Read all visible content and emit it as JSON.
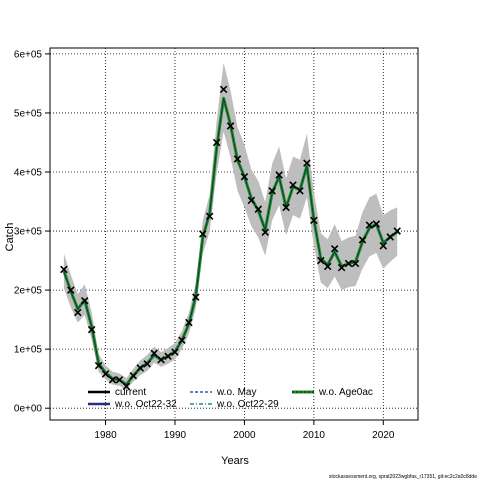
{
  "chart_data": {
    "type": "line",
    "xlabel": "Years",
    "ylabel": "Catch",
    "xlim": [
      1972,
      2025
    ],
    "ylim": [
      -20000,
      610000
    ],
    "x_ticks": [
      1980,
      1990,
      2000,
      2010,
      2020
    ],
    "y_ticks": [
      {
        "value": 0,
        "label": "0e+00"
      },
      {
        "value": 100000,
        "label": "1e+05"
      },
      {
        "value": 200000,
        "label": "2e+05"
      },
      {
        "value": 300000,
        "label": "3e+05"
      },
      {
        "value": 400000,
        "label": "4e+05"
      },
      {
        "value": 500000,
        "label": "5e+05"
      },
      {
        "value": 600000,
        "label": "6e+05"
      }
    ],
    "grid": true,
    "colors": {
      "band": "#bebebe",
      "current": "#000000",
      "wo_may": "#1f5fa8",
      "wo_age0ac": "#228b22",
      "wo_oct22_32": "#2b2b80",
      "wo_oct22_29": "#1a8a8a",
      "observed": "#000000"
    },
    "legend": [
      {
        "label": "current",
        "style": "current"
      },
      {
        "label": "w.o. May",
        "style": "wo_may"
      },
      {
        "label": "w.o. Age0ac",
        "style": "wo_age0ac"
      },
      {
        "label": "w.o. Oct22-32",
        "style": "wo_oct22_32"
      },
      {
        "label": "w.o. Oct22-29",
        "style": "wo_oct22_29"
      }
    ],
    "credit": "stockassessment.org, sprat2023wgbfas_r17351, git:ec2c2a0c8dde",
    "x": [
      1974,
      1975,
      1976,
      1977,
      1978,
      1979,
      1980,
      1981,
      1982,
      1983,
      1984,
      1985,
      1986,
      1987,
      1988,
      1989,
      1990,
      1991,
      1992,
      1993,
      1994,
      1995,
      1996,
      1997,
      1998,
      1999,
      2000,
      2001,
      2002,
      2003,
      2004,
      2005,
      2006,
      2007,
      2008,
      2009,
      2010,
      2011,
      2012,
      2013,
      2014,
      2015,
      2016,
      2017,
      2018,
      2019,
      2020,
      2021,
      2022
    ],
    "observed": [
      235000,
      200000,
      162000,
      182000,
      133000,
      72000,
      58000,
      48000,
      48000,
      37000,
      55000,
      68000,
      75000,
      93000,
      82000,
      88000,
      95000,
      115000,
      145000,
      188000,
      295000,
      325000,
      450000,
      540000,
      478000,
      422000,
      392000,
      352000,
      337000,
      298000,
      368000,
      395000,
      340000,
      378000,
      368000,
      415000,
      318000,
      250000,
      240000,
      270000,
      238000,
      245000,
      245000,
      285000,
      310000,
      312000,
      275000,
      290000,
      300000
    ],
    "series": [
      {
        "name": "current",
        "values": [
          232000,
          198000,
          168000,
          183000,
          138000,
          76000,
          60000,
          50000,
          48000,
          40000,
          55000,
          68000,
          76000,
          90000,
          82000,
          88000,
          96000,
          115000,
          143000,
          190000,
          290000,
          330000,
          440000,
          525000,
          480000,
          420000,
          392000,
          355000,
          335000,
          302000,
          365000,
          392000,
          340000,
          375000,
          370000,
          410000,
          320000,
          253000,
          243000,
          265000,
          240000,
          245000,
          248000,
          282000,
          305000,
          312000,
          280000,
          290000,
          298000
        ]
      }
    ],
    "band_upper": [
      262000,
      226000,
      193000,
      210000,
      162000,
      92000,
      73000,
      62000,
      59000,
      51000,
      67000,
      81000,
      90000,
      104000,
      95000,
      102000,
      110000,
      131000,
      161000,
      212000,
      318000,
      362000,
      486000,
      585000,
      538000,
      476000,
      446000,
      404000,
      385000,
      349000,
      414000,
      443000,
      389000,
      426000,
      421000,
      465000,
      367000,
      296000,
      286000,
      312000,
      283000,
      289000,
      292000,
      332000,
      357000,
      363000,
      327000,
      335000,
      340000
    ],
    "band_lower": [
      203000,
      171000,
      145000,
      158000,
      116000,
      62000,
      49000,
      40000,
      38000,
      31000,
      45000,
      56000,
      63000,
      77000,
      70000,
      75000,
      83000,
      100000,
      126000,
      169000,
      262000,
      299000,
      397000,
      468000,
      425000,
      368000,
      340000,
      308000,
      289000,
      258000,
      318000,
      344000,
      293000,
      327000,
      321000,
      357000,
      276000,
      213000,
      203000,
      223000,
      200000,
      205000,
      207000,
      236000,
      257000,
      263000,
      236000,
      248000,
      258000
    ]
  }
}
